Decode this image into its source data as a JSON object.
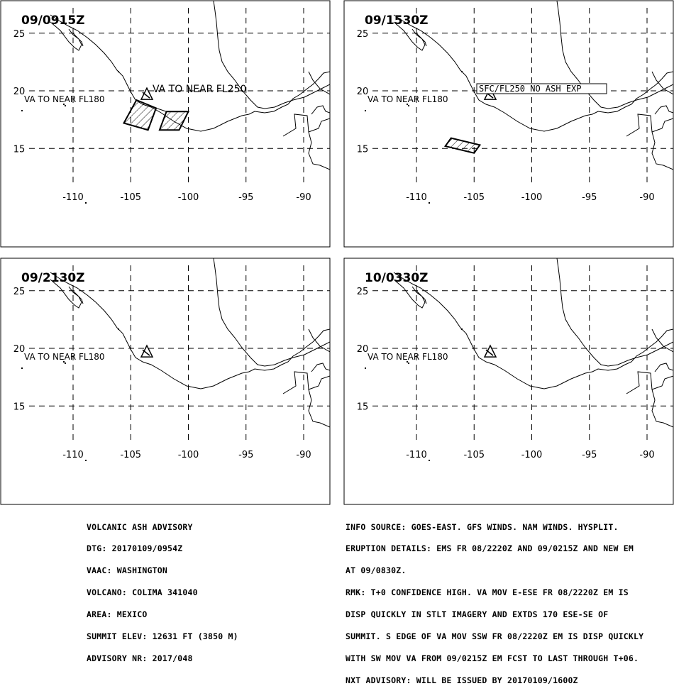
{
  "panels": [
    {
      "title": "09/0915Z",
      "labels": [
        "VA TO NEAR FL180",
        "VA TO NEAR FL250"
      ],
      "ash": [
        [
          [
            -104.5,
            19.2
          ],
          [
            -102.8,
            18.5
          ],
          [
            -103.5,
            16.6
          ],
          [
            -105.6,
            17.2
          ]
        ],
        [
          [
            -101.9,
            18.2
          ],
          [
            -100.0,
            18.2
          ],
          [
            -100.8,
            16.6
          ],
          [
            -102.5,
            16.6
          ]
        ]
      ]
    },
    {
      "title": "09/1530Z",
      "labels": [
        "VA TO NEAR FL180",
        "SFC/FL250 NO ASH EXP"
      ],
      "ash": [
        [
          [
            -107.0,
            15.9
          ],
          [
            -104.5,
            15.3
          ],
          [
            -105.0,
            14.6
          ],
          [
            -107.5,
            15.2
          ]
        ]
      ]
    },
    {
      "title": "09/2130Z",
      "labels": [
        "VA TO NEAR FL180"
      ],
      "ash": []
    },
    {
      "title": "10/0330Z",
      "labels": [
        "VA TO NEAR FL180"
      ],
      "ash": []
    }
  ],
  "axes": {
    "lon_ticks": [
      "-110",
      "-105",
      "-100",
      "-95",
      "-90"
    ],
    "lat_ticks": [
      "25",
      "20",
      "15"
    ]
  },
  "advisory_left": [
    "VOLCANIC ASH ADVISORY",
    "DTG: 20170109/0954Z",
    "VAAC: WASHINGTON",
    "VOLCANO: COLIMA 341040",
    "AREA: MEXICO",
    "SUMMIT ELEV: 12631 FT (3850 M)",
    "ADVISORY NR: 2017/048"
  ],
  "advisory_right": [
    "INFO SOURCE: GOES-EAST. GFS WINDS. NAM WINDS. HYSPLIT.",
    "ERUPTION DETAILS: EMS FR 08/2220Z AND 09/0215Z AND NEW EM",
    "AT 09/0830Z.",
    "RMK: T+0 CONFIDENCE HIGH. VA MOV E-ESE FR 08/2220Z EM IS",
    "DISP QUICKLY IN STLT IMAGERY AND EXTDS 170 ESE-SE OF",
    "SUMMIT. S EDGE OF VA MOV SSW FR 08/2220Z EM IS DISP QUICKLY",
    "WITH SW MOV VA FROM 09/0215Z EM FCST TO LAST THROUGH T+06.",
    "NXT ADVISORY: WILL BE ISSUED BY 20170109/1600Z"
  ],
  "volcano": {
    "name": "COLIMA",
    "lon": -103.6,
    "lat": 19.5
  }
}
